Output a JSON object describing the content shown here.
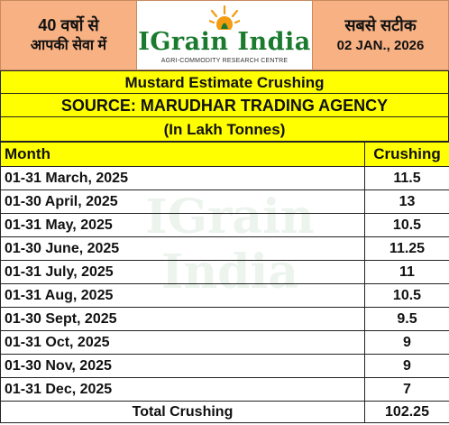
{
  "header": {
    "left_line1": "40 वर्षो से",
    "left_line2": "आपकी सेवा में",
    "logo_text": "IGrain India",
    "logo_tagline": "AGRI-COMMODITY RESEARCH CENTRE",
    "right_line1": "सबसे सटीक",
    "right_line2": "02 JAN., 2026"
  },
  "title": "Mustard Estimate Crushing",
  "source": "SOURCE: MARUDHAR TRADING AGENCY",
  "unit": "(In Lakh Tonnes)",
  "table": {
    "col_month": "Month",
    "col_crushing": "Crushing",
    "rows": [
      {
        "month": "01-31 March, 2025",
        "value": "11.5"
      },
      {
        "month": "01-30 April, 2025",
        "value": "13"
      },
      {
        "month": "01-31 May, 2025",
        "value": "10.5"
      },
      {
        "month": "01-30 June, 2025",
        "value": "11.25"
      },
      {
        "month": "01-31 July, 2025",
        "value": "11"
      },
      {
        "month": "01-31 Aug, 2025",
        "value": "10.5"
      },
      {
        "month": "01-30 Sept, 2025",
        "value": "9.5"
      },
      {
        "month": "01-31 Oct, 2025",
        "value": "9"
      },
      {
        "month": "01-30 Nov, 2025",
        "value": "9"
      },
      {
        "month": "01-31 Dec, 2025",
        "value": "7"
      }
    ],
    "total_label": "Total Crushing",
    "total_value": "102.25"
  },
  "watermark": "IGrain India",
  "colors": {
    "accent_yellow": "#ffff00",
    "header_orange": "#f7b183",
    "brand_green": "#1a7a2e",
    "sun_orange": "#f39c12"
  }
}
